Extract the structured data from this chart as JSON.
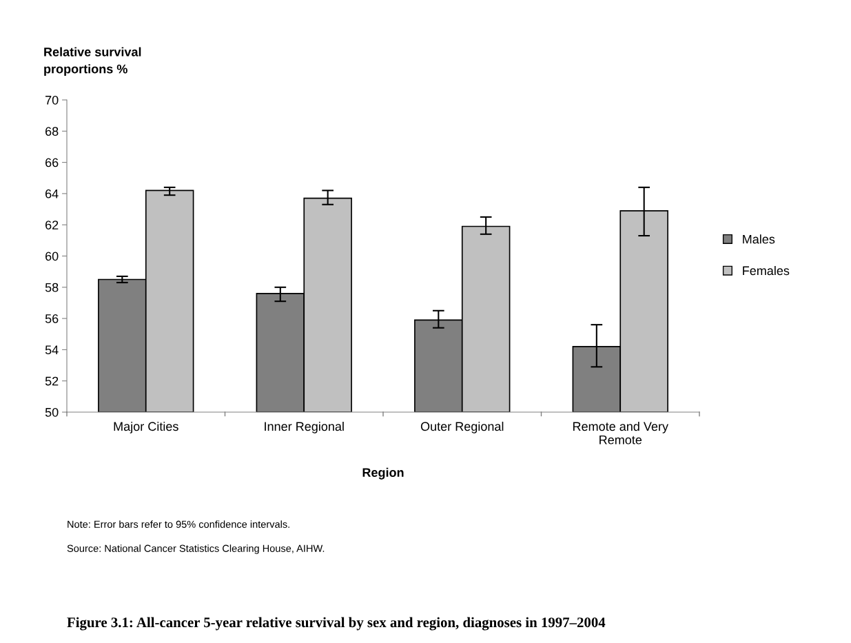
{
  "chart_data": {
    "type": "bar",
    "title": "Figure 3.1: All-cancer 5-year relative survival by sex and region, diagnoses in 1997–2004",
    "ylabel": "Relative survival\nproportions %",
    "xlabel": "Region",
    "categories": [
      "Major Cities",
      "Inner Regional",
      "Outer Regional",
      "Remote and Very\nRemote"
    ],
    "series": [
      {
        "name": "Males",
        "color": "#808080",
        "values": [
          58.5,
          57.6,
          55.9,
          54.2
        ],
        "errors": [
          [
            58.3,
            58.7
          ],
          [
            57.1,
            58.0
          ],
          [
            55.4,
            56.5
          ],
          [
            52.9,
            55.6
          ]
        ]
      },
      {
        "name": "Females",
        "color": "#c0c0c0",
        "values": [
          64.2,
          63.7,
          61.9,
          62.9
        ],
        "errors": [
          [
            63.9,
            64.4
          ],
          [
            63.3,
            64.2
          ],
          [
            61.4,
            62.5
          ],
          [
            61.3,
            64.4
          ]
        ]
      }
    ],
    "ylim": [
      50,
      70
    ],
    "yticks": [
      50,
      52,
      54,
      56,
      58,
      60,
      62,
      64,
      66,
      68,
      70
    ],
    "grid": false,
    "legend": "right",
    "annotations": [
      "Note: Error bars refer to 95% confidence intervals.",
      "Source: National Cancer Statistics Clearing House, AIHW."
    ]
  }
}
